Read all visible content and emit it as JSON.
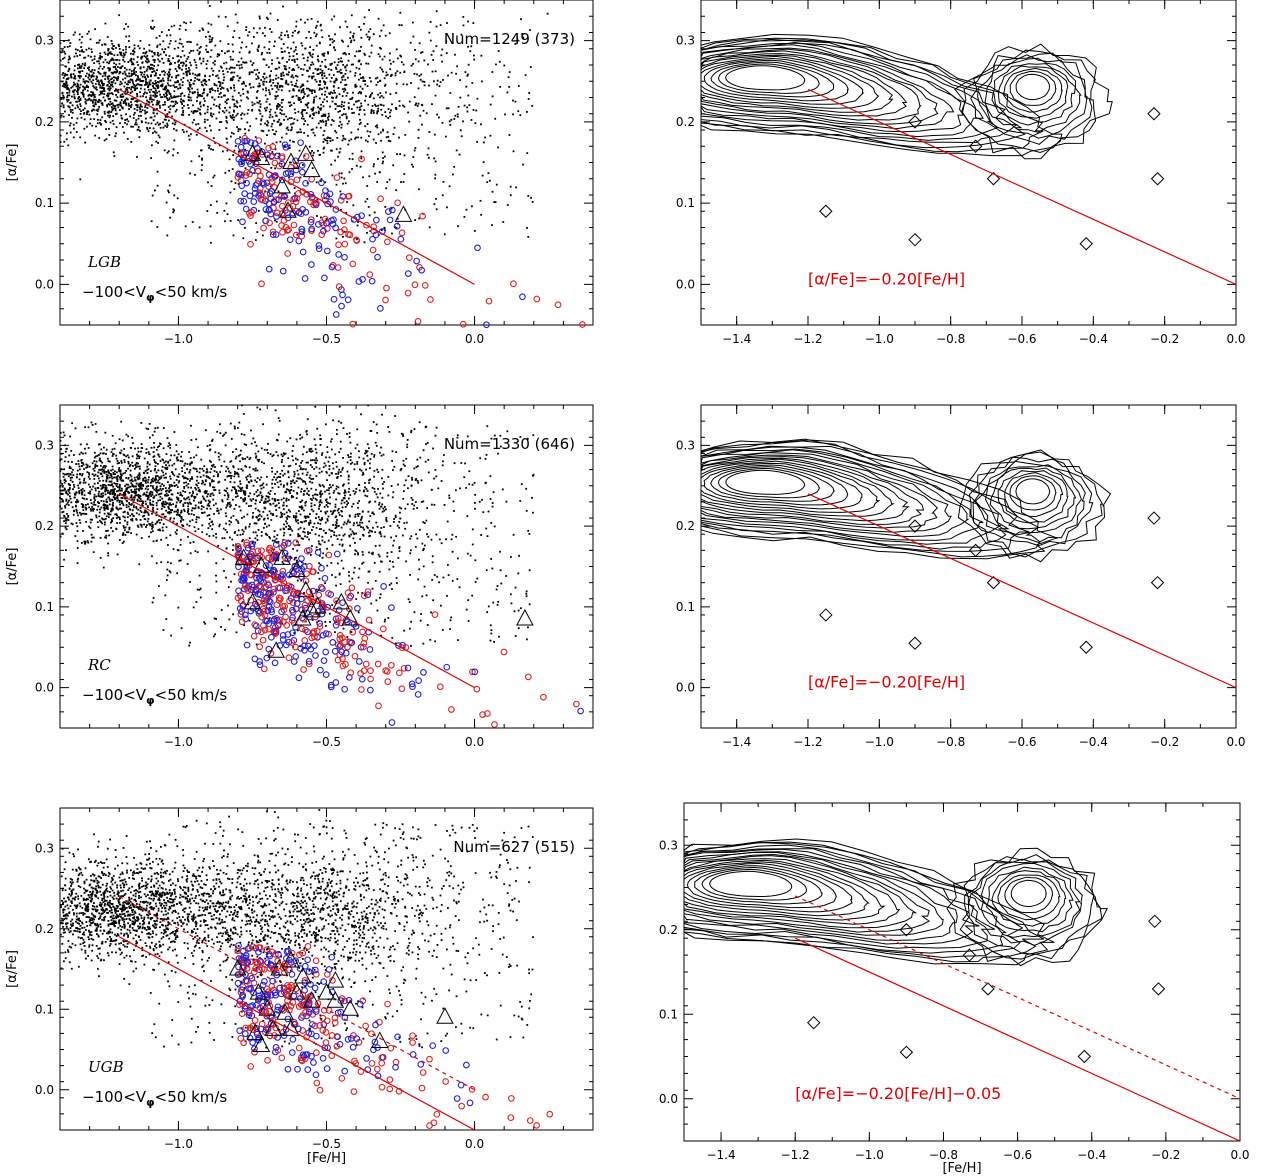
{
  "chart_data": [
    {
      "type": "scatter",
      "panel": "left-top",
      "annotation": "Num=1249 (373)",
      "population": "LGB",
      "velocity_cut": "−100<V",
      "velocity_sub": "φ",
      "velocity_tail": "<50 km/s",
      "xlabel": "",
      "ylabel": "[α/Fe]",
      "xlim": [
        -1.4,
        0.4
      ],
      "ylim": [
        -0.05,
        0.35
      ],
      "xticks": [
        -1.0,
        -0.5,
        0.0
      ],
      "xtick_labels": [
        "−1.0",
        "−0.5",
        "0.0"
      ],
      "yticks": [
        0.0,
        0.1,
        0.2,
        0.3
      ],
      "ytick_labels": [
        "0.0",
        "0.1",
        "0.2",
        "0.3"
      ],
      "fit_lines": [
        {
          "style": "solid",
          "x": [
            -1.2,
            0.0
          ],
          "y": [
            0.24,
            0.0
          ]
        }
      ],
      "triangles": [
        [
          -0.75,
          0.16
        ],
        [
          -0.72,
          0.155
        ],
        [
          -0.62,
          0.15
        ],
        [
          -0.57,
          0.16
        ],
        [
          -0.55,
          0.14
        ],
        [
          -0.65,
          0.12
        ],
        [
          -0.63,
          0.09
        ],
        [
          -0.24,
          0.085
        ]
      ]
    },
    {
      "type": "contour",
      "panel": "right-top",
      "equation": "[α/Fe]=−0.20[Fe/H]",
      "xlim": [
        -1.5,
        0.0
      ],
      "ylim": [
        -0.05,
        0.35
      ],
      "xticks": [
        -1.4,
        -1.2,
        -1.0,
        -0.8,
        -0.6,
        -0.4,
        -0.2,
        0.0
      ],
      "xtick_labels": [
        "−1.4",
        "−1.2",
        "−1.0",
        "−0.8",
        "−0.6",
        "−0.4",
        "−0.2",
        "0.0"
      ],
      "yticks": [
        0.0,
        0.1,
        0.2,
        0.3
      ],
      "ytick_labels": [
        "0.0",
        "0.1",
        "0.2",
        "0.3"
      ],
      "fit_lines": [
        {
          "style": "solid",
          "x": [
            -1.2,
            0.0
          ],
          "y": [
            0.24,
            0.0
          ]
        }
      ]
    },
    {
      "type": "scatter",
      "panel": "left-middle",
      "annotation": "Num=1330 (646)",
      "population": "RC",
      "velocity_cut": "−100<V",
      "velocity_sub": "φ",
      "velocity_tail": "<50 km/s",
      "xlabel": "",
      "ylabel": "[α/Fe]",
      "xlim": [
        -1.4,
        0.4
      ],
      "ylim": [
        -0.05,
        0.35
      ],
      "xticks": [
        -1.0,
        -0.5,
        0.0
      ],
      "xtick_labels": [
        "−1.0",
        "−0.5",
        "0.0"
      ],
      "yticks": [
        0.0,
        0.1,
        0.2,
        0.3
      ],
      "ytick_labels": [
        "0.0",
        "0.1",
        "0.2",
        "0.3"
      ],
      "fit_lines": [
        {
          "style": "solid",
          "x": [
            -1.2,
            0.0
          ],
          "y": [
            0.24,
            0.0
          ]
        }
      ],
      "triangles": [
        [
          -0.78,
          0.16
        ],
        [
          -0.72,
          0.15
        ],
        [
          -0.65,
          0.16
        ],
        [
          -0.6,
          0.145
        ],
        [
          -0.57,
          0.12
        ],
        [
          -0.75,
          0.105
        ],
        [
          -0.58,
          0.085
        ],
        [
          -0.53,
          0.1
        ],
        [
          -0.45,
          0.105
        ],
        [
          -0.42,
          0.085
        ],
        [
          -0.67,
          0.045
        ],
        [
          -0.55,
          0.095
        ],
        [
          0.17,
          0.085
        ]
      ]
    },
    {
      "type": "contour",
      "panel": "right-middle",
      "equation": "[α/Fe]=−0.20[Fe/H]",
      "xlim": [
        -1.5,
        0.0
      ],
      "ylim": [
        -0.05,
        0.35
      ],
      "xticks": [
        -1.4,
        -1.2,
        -1.0,
        -0.8,
        -0.6,
        -0.4,
        -0.2,
        0.0
      ],
      "xtick_labels": [
        "−1.4",
        "−1.2",
        "−1.0",
        "−0.8",
        "−0.6",
        "−0.4",
        "−0.2",
        "0.0"
      ],
      "yticks": [
        0.0,
        0.1,
        0.2,
        0.3
      ],
      "ytick_labels": [
        "0.0",
        "0.1",
        "0.2",
        "0.3"
      ],
      "fit_lines": [
        {
          "style": "solid",
          "x": [
            -1.2,
            0.0
          ],
          "y": [
            0.24,
            0.0
          ]
        }
      ]
    },
    {
      "type": "scatter",
      "panel": "left-bottom",
      "annotation": "Num=627 (515)",
      "population": "UGB",
      "velocity_cut": "−100<V",
      "velocity_sub": "φ",
      "velocity_tail": "<50 km/s",
      "xlabel": "[Fe/H]",
      "ylabel": "[α/Fe]",
      "xlim": [
        -1.4,
        0.4
      ],
      "ylim": [
        -0.05,
        0.35
      ],
      "xticks": [
        -1.0,
        -0.5,
        0.0
      ],
      "xtick_labels": [
        "−1.0",
        "−0.5",
        "0.0"
      ],
      "yticks": [
        0.0,
        0.1,
        0.2,
        0.3
      ],
      "ytick_labels": [
        "0.0",
        "0.1",
        "0.2",
        "0.3"
      ],
      "fit_lines": [
        {
          "style": "solid",
          "x": [
            -1.2,
            0.0
          ],
          "y": [
            0.19,
            -0.05
          ]
        },
        {
          "style": "dashed",
          "x": [
            -1.2,
            0.0
          ],
          "y": [
            0.24,
            0.0
          ]
        }
      ],
      "triangles": [
        [
          -0.8,
          0.15
        ],
        [
          -0.73,
          0.12
        ],
        [
          -0.66,
          0.15
        ],
        [
          -0.62,
          0.16
        ],
        [
          -0.58,
          0.14
        ],
        [
          -0.6,
          0.12
        ],
        [
          -0.55,
          0.11
        ],
        [
          -0.7,
          0.1
        ],
        [
          -0.64,
          0.095
        ],
        [
          -0.5,
          0.12
        ],
        [
          -0.47,
          0.11
        ],
        [
          -0.42,
          0.1
        ],
        [
          -0.62,
          0.075
        ],
        [
          -0.68,
          0.075
        ],
        [
          -0.74,
          0.07
        ],
        [
          -0.72,
          0.055
        ],
        [
          -0.32,
          0.06
        ],
        [
          -0.1,
          0.09
        ],
        [
          -0.47,
          0.135
        ]
      ]
    },
    {
      "type": "contour",
      "panel": "right-bottom",
      "equation": "[α/Fe]=−0.20[Fe/H]−0.05",
      "xlabel": "[Fe/H]",
      "xlim": [
        -1.5,
        0.0
      ],
      "ylim": [
        -0.05,
        0.35
      ],
      "xticks": [
        -1.4,
        -1.2,
        -1.0,
        -0.8,
        -0.6,
        -0.4,
        -0.2,
        0.0
      ],
      "xtick_labels": [
        "−1.4",
        "−1.2",
        "−1.0",
        "−0.8",
        "−0.6",
        "−0.4",
        "−0.2",
        "0.0"
      ],
      "yticks": [
        0.0,
        0.1,
        0.2,
        0.3
      ],
      "ytick_labels": [
        "0.0",
        "0.1",
        "0.2",
        "0.3"
      ],
      "fit_lines": [
        {
          "style": "solid",
          "x": [
            -1.2,
            0.0
          ],
          "y": [
            0.19,
            -0.05
          ]
        },
        {
          "style": "dashed",
          "x": [
            -1.2,
            0.0
          ],
          "y": [
            0.24,
            0.0
          ]
        }
      ]
    }
  ],
  "colors": {
    "ink": "#000000",
    "fit": "#e00000",
    "red_points": "#e02020",
    "blue_points": "#2020e0"
  }
}
